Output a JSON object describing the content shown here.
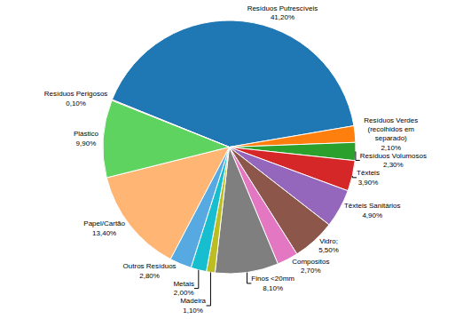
{
  "chart_data": {
    "type": "pie",
    "categories": [
      "Resíduos Putrescíveis",
      "Resíduos Verdes\n(recolhidos em\nseparado)",
      "Resíduos Volumosos",
      "Têxteis",
      "Têxteis Sanitários",
      "Vidro;",
      "Compositos",
      "Finos <20mm",
      "Madeira",
      "Metais",
      "Outros Resíduos",
      "Papel/Cartão",
      "Plástico",
      "Resíduos Perigosos"
    ],
    "values": [
      41.2,
      2.1,
      2.3,
      3.9,
      4.9,
      5.5,
      2.7,
      8.1,
      1.1,
      2.0,
      2.8,
      13.4,
      9.9,
      0.1
    ],
    "value_labels": [
      "41,20%",
      "2,10%",
      "2,30%",
      "3,90%",
      "4,90%",
      "5,50%",
      "2,70%",
      "8,10%",
      "1,10%",
      "2,00%",
      "2,80%",
      "13,40%",
      "9,90%",
      "0,10%"
    ]
  }
}
